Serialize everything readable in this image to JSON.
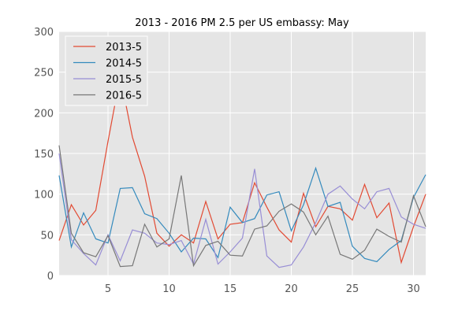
{
  "chart_data": {
    "type": "line",
    "title": "2013 - 2016 PM 2.5 per US embassy: May",
    "xlabel": "",
    "ylabel": "",
    "xlim": [
      1,
      31
    ],
    "ylim": [
      0,
      300
    ],
    "xticks": [
      5,
      10,
      15,
      20,
      25,
      30
    ],
    "yticks": [
      0,
      50,
      100,
      150,
      200,
      250,
      300
    ],
    "grid": true,
    "legend": "top-left",
    "x": [
      1,
      2,
      3,
      4,
      5,
      6,
      7,
      8,
      9,
      10,
      11,
      12,
      13,
      14,
      15,
      16,
      17,
      18,
      19,
      20,
      21,
      22,
      23,
      24,
      25,
      26,
      27,
      28,
      29,
      30,
      31
    ],
    "series": [
      {
        "name": "2013-5",
        "color": "#e24a33",
        "values": [
          43,
          87,
          62,
          80,
          165,
          245,
          170,
          122,
          52,
          36,
          50,
          40,
          91,
          45,
          63,
          65,
          114,
          84,
          56,
          41,
          101,
          60,
          85,
          82,
          68,
          112,
          71,
          89,
          16,
          60,
          100
        ]
      },
      {
        "name": "2014-5",
        "color": "#348abd",
        "values": [
          123,
          35,
          77,
          45,
          40,
          107,
          108,
          76,
          70,
          52,
          29,
          46,
          45,
          22,
          84,
          65,
          70,
          99,
          103,
          55,
          87,
          132,
          85,
          90,
          36,
          21,
          17,
          32,
          43,
          96,
          124
        ]
      },
      {
        "name": "2015-5",
        "color": "#988ed5",
        "values": [
          150,
          44,
          27,
          13,
          50,
          18,
          56,
          52,
          40,
          38,
          43,
          14,
          69,
          14,
          29,
          46,
          131,
          24,
          10,
          13,
          35,
          65,
          100,
          110,
          94,
          82,
          103,
          107,
          72,
          63,
          58
        ]
      },
      {
        "name": "2016-5",
        "color": "#777777",
        "values": [
          160,
          52,
          28,
          23,
          49,
          11,
          12,
          63,
          35,
          45,
          123,
          12,
          37,
          42,
          25,
          24,
          57,
          61,
          79,
          88,
          78,
          50,
          73,
          26,
          20,
          31,
          57,
          48,
          41,
          98,
          60
        ]
      }
    ]
  }
}
